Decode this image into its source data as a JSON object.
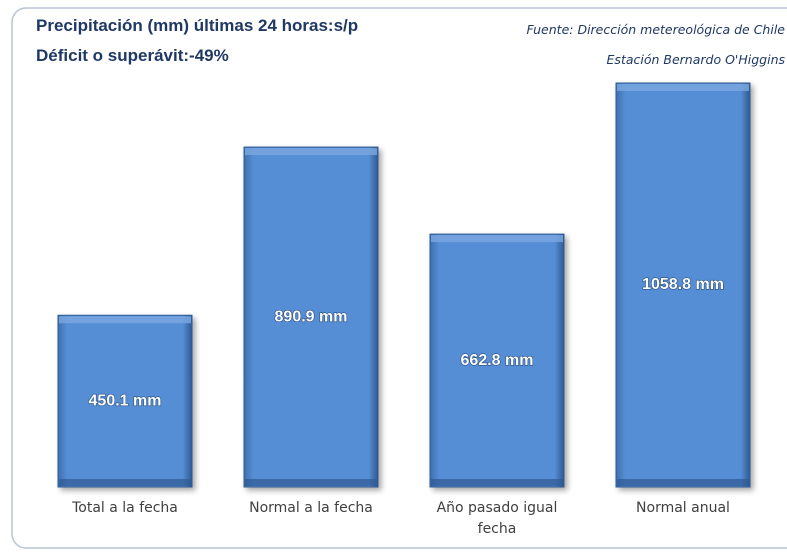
{
  "chart_data": {
    "type": "bar",
    "title": "Precipitación (mm) últimas 24 horas:s/p",
    "subtitle": "Déficit o superávit:-49%",
    "annotations": [
      "Fuente: Dirección metereológica de Chile",
      "Estación Bernardo O'Higgins"
    ],
    "categories": [
      "Total a la fecha",
      "Normal a la fecha",
      "Año pasado igual fecha",
      "Normal anual"
    ],
    "values": [
      450.1,
      890.9,
      662.8,
      1058.8
    ],
    "value_labels": [
      "450.1 mm",
      "890.9 mm",
      "662.8 mm",
      "1058.8 mm"
    ],
    "color": "#558ed5"
  }
}
